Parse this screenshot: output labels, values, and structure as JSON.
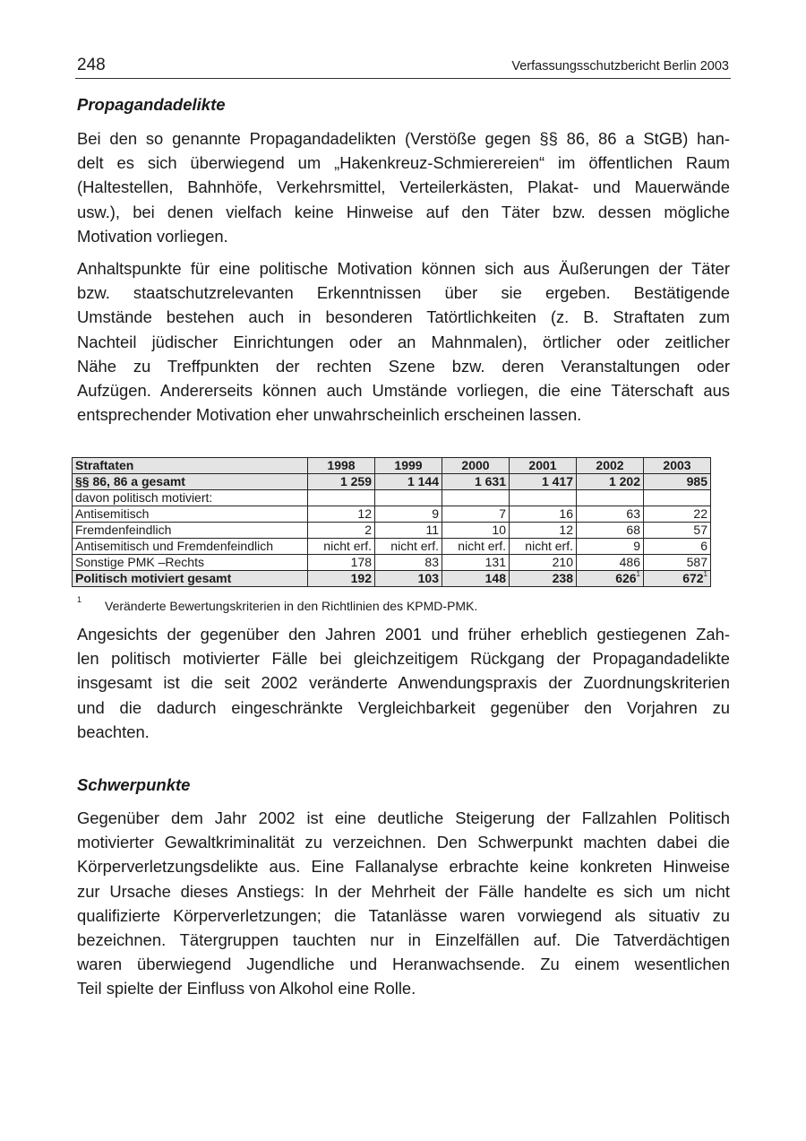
{
  "header": {
    "page_number": "248",
    "running_title": "Verfassungsschutzbericht Berlin 2003"
  },
  "section1": {
    "heading": "Propagandadelikte",
    "p1": [
      "Bei den so genannte Propagandadelikten (Verstöße gegen §§ 86, 86 a StGB) han-",
      "delt es sich überwiegend um „Hakenkreuz-Schmierereien“ im öffentlichen Raum",
      "(Haltestellen, Bahnhöfe, Verkehrsmittel, Verteilerkästen, Plakat- und Mauerwände",
      "usw.), bei denen vielfach keine Hinweise auf den Täter bzw. dessen mögliche",
      "Motivation vorliegen."
    ],
    "p2": [
      "Anhaltspunkte für eine politische Motivation können sich aus Äußerungen der Täter",
      "bzw. staatschutzrelevanten Erkenntnissen über sie ergeben. Bestätigende",
      "Umstände bestehen auch in besonderen Tatörtlichkeiten (z. B. Straftaten zum",
      "Nachteil jüdischer Einrichtungen oder an Mahnmalen), örtlicher oder zeitlicher",
      "Nähe zu Treffpunkten der rechten Szene bzw. deren Veranstaltungen oder",
      "Aufzügen. Andererseits können auch Umstände vorliegen, die eine Täterschaft aus",
      "entsprechender Motivation eher unwahrscheinlich erscheinen lassen."
    ]
  },
  "table": {
    "header": [
      "Straftaten",
      "1998",
      "1999",
      "2000",
      "2001",
      "2002",
      "2003"
    ],
    "rows": [
      {
        "label": "§§ 86, 86 a gesamt",
        "values": [
          "1 259",
          "1 144",
          "1 631",
          "1 417",
          "1 202",
          "985"
        ],
        "bold": true
      },
      {
        "label": "davon politisch motiviert:",
        "values": [
          "",
          "",
          "",
          "",
          "",
          ""
        ]
      },
      {
        "label": "Antisemitisch",
        "values": [
          "12",
          "9",
          "7",
          "16",
          "63",
          "22"
        ]
      },
      {
        "label": "Fremdenfeindlich",
        "values": [
          "2",
          "11",
          "10",
          "12",
          "68",
          "57"
        ]
      },
      {
        "label": "Antisemitisch und Fremdenfeindlich",
        "values": [
          "nicht erf.",
          "nicht erf.",
          "nicht erf.",
          "nicht erf.",
          "9",
          "6"
        ]
      },
      {
        "label": "Sonstige PMK –Rechts",
        "values": [
          "178",
          "83",
          "131",
          "210",
          "486",
          "587"
        ]
      },
      {
        "label": "Politisch motiviert gesamt",
        "values": [
          "192",
          "103",
          "148",
          "238",
          "626",
          "672"
        ],
        "footnote_refs": [
          "",
          "",
          "",
          "",
          "1",
          "1"
        ],
        "bold": true
      }
    ],
    "footnote": {
      "mark": "1",
      "text": "Veränderte Bewertungskriterien in den Richtlinien des KPMD-PMK."
    }
  },
  "p3": [
    "Angesichts der gegenüber den Jahren 2001 und früher erheblich gestiegenen Zah-",
    "len politisch motivierter Fälle bei gleichzeitigem Rückgang der Propagandadelikte",
    "insgesamt ist die seit 2002 veränderte Anwendungspraxis der Zuordnungskriterien",
    "und die dadurch eingeschränkte Vergleichbarkeit gegenüber den Vorjahren zu",
    "beachten."
  ],
  "section2": {
    "heading": "Schwerpunkte",
    "p1": [
      "Gegenüber dem Jahr 2002 ist eine deutliche Steigerung der Fallzahlen Politisch",
      "motivierter Gewaltkriminalität zu verzeichnen. Den Schwerpunkt machten dabei die",
      "Körperverletzungsdelikte aus. Eine Fallanalyse erbrachte keine konkreten Hinweise",
      "zur Ursache dieses Anstiegs: In der Mehrheit der Fälle handelte es sich um nicht",
      "qualifizierte Körperverletzungen; die Tatanlässe waren vorwiegend als situativ zu",
      "bezeichnen. Tätergruppen tauchten nur in Einzelfällen auf. Die Tatverdächtigen",
      "waren überwiegend Jugendliche und Heranwachsende. Zu einem wesentlichen",
      "Teil spielte der Einfluss von Alkohol eine Rolle."
    ]
  }
}
